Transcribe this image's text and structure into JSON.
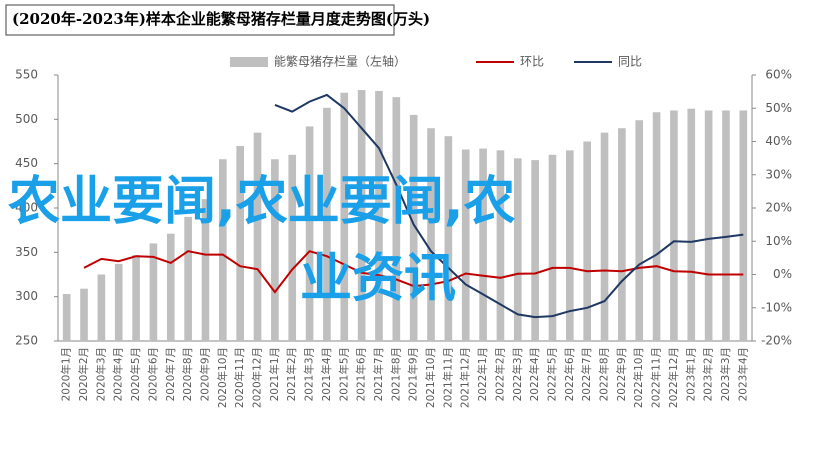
{
  "chart_data": {
    "type": "bar-line",
    "title": "(2020年-2023年)样本企业能繁母猪存栏量月度走势图(万头)",
    "watermark": [
      "农业要闻,农业要闻,农",
      "业资讯"
    ],
    "categories": [
      "2020年1月",
      "2020年2月",
      "2020年3月",
      "2020年4月",
      "2020年5月",
      "2020年6月",
      "2020年7月",
      "2020年8月",
      "2020年9月",
      "2020年10月",
      "2020年11月",
      "2020年12月",
      "2021年1月",
      "2021年2月",
      "2021年3月",
      "2021年4月",
      "2021年5月",
      "2021年6月",
      "2021年7月",
      "2021年8月",
      "2021年9月",
      "2021年10月",
      "2021年11月",
      "2021年12月",
      "2022年1月",
      "2022年2月",
      "2022年3月",
      "2022年4月",
      "2022年5月",
      "2022年6月",
      "2022年7月",
      "2022年8月",
      "2022年9月",
      "2022年10月",
      "2022年11月",
      "2022年12月",
      "2023年1月",
      "2023年2月",
      "2023年3月",
      "2023年4月"
    ],
    "series": [
      {
        "name": "能繁母猪存栏量（左轴）",
        "kind": "bar",
        "color": "#bfbfbf",
        "values": [
          303,
          309,
          325,
          337,
          347,
          360,
          371,
          390,
          410,
          455,
          470,
          485,
          455,
          460,
          492,
          513,
          530,
          533,
          532,
          525,
          505,
          490,
          481,
          466,
          467,
          465,
          456,
          454,
          460,
          465,
          475,
          485,
          490,
          499,
          508,
          510,
          512,
          510,
          510,
          510
        ]
      },
      {
        "name": "环比",
        "kind": "line",
        "axis": "y2",
        "color": "#c00000",
        "values": [
          null,
          2,
          4.7,
          4,
          5.5,
          5.3,
          3.5,
          7,
          6,
          6,
          2.5,
          1.6,
          -5.3,
          1.5,
          7,
          5.5,
          3,
          0.5,
          -0.2,
          -1.5,
          -3.5,
          -3,
          -2,
          0.3,
          -0.4,
          -1,
          0.2,
          0.3,
          2,
          2,
          1,
          1.2,
          1,
          2,
          2.5,
          1,
          0.8,
          0,
          0,
          0
        ]
      },
      {
        "name": "同比",
        "kind": "line",
        "axis": "y2",
        "color": "#1f3864",
        "values": [
          null,
          null,
          null,
          null,
          null,
          null,
          null,
          null,
          null,
          null,
          null,
          null,
          51,
          49,
          52,
          54,
          50,
          44,
          38,
          27,
          15,
          7,
          2,
          -3,
          -6,
          -9,
          -12,
          -12.8,
          -12.5,
          -11,
          -10,
          -8,
          -2,
          3,
          6,
          10,
          9.8,
          10.7,
          11.3,
          12
        ]
      }
    ],
    "ylim": [
      250,
      550
    ],
    "yticks": [
      250,
      300,
      350,
      400,
      450,
      500,
      550
    ],
    "y2lim": [
      -20,
      60
    ],
    "y2ticks": [
      {
        "value": -20,
        "label": "-20%"
      },
      {
        "value": -10,
        "label": "-10%"
      },
      {
        "value": 0,
        "label": "0%"
      },
      {
        "value": 10,
        "label": "10%"
      },
      {
        "value": 20,
        "label": "20%"
      },
      {
        "value": 30,
        "label": "30%"
      },
      {
        "value": 40,
        "label": "40%"
      },
      {
        "value": 50,
        "label": "50%"
      },
      {
        "value": 60,
        "label": "60%"
      }
    ]
  }
}
